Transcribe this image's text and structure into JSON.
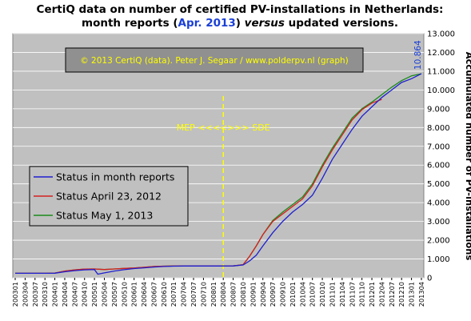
{
  "chart_data": {
    "type": "line",
    "title_parts": [
      {
        "text": "CertiQ data on number of certified PV-installations in Netherlands:",
        "color": "#000000",
        "italic": false
      },
      {
        "text": "month reports (",
        "color": "#000000",
        "italic": false
      },
      {
        "text": "Apr. 2013",
        "color": "#1a3fd6",
        "italic": false
      },
      {
        "text": ") ",
        "color": "#000000",
        "italic": false
      },
      {
        "text": "versus",
        "color": "#000000",
        "italic": true
      },
      {
        "text": " updated versions.",
        "color": "#000000",
        "italic": false
      }
    ],
    "ylabel": "Accumulated number of PV-installations",
    "ylim": [
      0,
      13000
    ],
    "y_ticks": [
      "0",
      "1.000",
      "2.000",
      "3.000",
      "4.000",
      "5.000",
      "6.000",
      "7.000",
      "8.000",
      "9.000",
      "10.000",
      "11.000",
      "12.000",
      "13.000"
    ],
    "x_ticks": [
      "200301",
      "200304",
      "200307",
      "200310",
      "200401",
      "200404",
      "200407",
      "200410",
      "200501",
      "200504",
      "200507",
      "200510",
      "200601",
      "200604",
      "200607",
      "200610",
      "200701",
      "200704",
      "200707",
      "200710",
      "200801",
      "200804",
      "200807",
      "200810",
      "200901",
      "200904",
      "200907",
      "200910",
      "201001",
      "201004",
      "201007",
      "201010",
      "201101",
      "201104",
      "201107",
      "201110",
      "201201",
      "201204",
      "201207",
      "201210",
      "201301",
      "201304"
    ],
    "grid": true,
    "copyright": "© 2013 CertiQ (data). Peter J. Segaar / www.polderpv.nl (graph)",
    "annotation": "MEP <<<<>>> SDE",
    "annotation_x": "200804",
    "end_label": "10.864",
    "legend_position": "lower-left",
    "series": [
      {
        "name": "Status in month reports",
        "color": "#1f1fcf",
        "points": [
          [
            "200301",
            240
          ],
          [
            "200310",
            240
          ],
          [
            "200401",
            245
          ],
          [
            "200404",
            320
          ],
          [
            "200407",
            380
          ],
          [
            "200410",
            420
          ],
          [
            "200501",
            440
          ],
          [
            "200502",
            190
          ],
          [
            "200504",
            260
          ],
          [
            "200507",
            360
          ],
          [
            "200510",
            430
          ],
          [
            "200601",
            490
          ],
          [
            "200604",
            530
          ],
          [
            "200607",
            570
          ],
          [
            "200610",
            600
          ],
          [
            "200701",
            620
          ],
          [
            "200704",
            625
          ],
          [
            "200707",
            625
          ],
          [
            "200710",
            625
          ],
          [
            "200801",
            625
          ],
          [
            "200804",
            625
          ],
          [
            "200807",
            630
          ],
          [
            "200810",
            680
          ],
          [
            "200812",
            900
          ],
          [
            "200902",
            1200
          ],
          [
            "200904",
            1700
          ],
          [
            "200907",
            2400
          ],
          [
            "200910",
            3000
          ],
          [
            "201001",
            3500
          ],
          [
            "201004",
            3900
          ],
          [
            "201007",
            4400
          ],
          [
            "201010",
            5300
          ],
          [
            "201101",
            6300
          ],
          [
            "201104",
            7100
          ],
          [
            "201107",
            7900
          ],
          [
            "201110",
            8600
          ],
          [
            "201201",
            9100
          ],
          [
            "201204",
            9600
          ],
          [
            "201207",
            10000
          ],
          [
            "201210",
            10400
          ],
          [
            "201301",
            10600
          ],
          [
            "201304",
            10864
          ]
        ]
      },
      {
        "name": "Status April 23, 2012",
        "color": "#d42020",
        "points": [
          [
            "200301",
            240
          ],
          [
            "200310",
            240
          ],
          [
            "200401",
            250
          ],
          [
            "200404",
            360
          ],
          [
            "200407",
            420
          ],
          [
            "200410",
            460
          ],
          [
            "200501",
            470
          ],
          [
            "200504",
            440
          ],
          [
            "200507",
            470
          ],
          [
            "200510",
            500
          ],
          [
            "200601",
            520
          ],
          [
            "200604",
            560
          ],
          [
            "200607",
            600
          ],
          [
            "200610",
            620
          ],
          [
            "200701",
            625
          ],
          [
            "200704",
            625
          ],
          [
            "200707",
            625
          ],
          [
            "200710",
            625
          ],
          [
            "200801",
            625
          ],
          [
            "200804",
            625
          ],
          [
            "200807",
            630
          ],
          [
            "200810",
            700
          ],
          [
            "200812",
            1150
          ],
          [
            "200902",
            1700
          ],
          [
            "200904",
            2300
          ],
          [
            "200907",
            3000
          ],
          [
            "200910",
            3400
          ],
          [
            "201001",
            3800
          ],
          [
            "201004",
            4200
          ],
          [
            "201007",
            4900
          ],
          [
            "201010",
            5900
          ],
          [
            "201101",
            6800
          ],
          [
            "201104",
            7600
          ],
          [
            "201107",
            8400
          ],
          [
            "201110",
            8950
          ],
          [
            "201201",
            9300
          ],
          [
            "201204",
            9500
          ]
        ]
      },
      {
        "name": "Status May 1, 2013",
        "color": "#1a8a1a",
        "points": [
          [
            "200301",
            240
          ],
          [
            "200310",
            240
          ],
          [
            "200401",
            250
          ],
          [
            "200404",
            360
          ],
          [
            "200407",
            420
          ],
          [
            "200410",
            460
          ],
          [
            "200501",
            470
          ],
          [
            "200504",
            440
          ],
          [
            "200507",
            470
          ],
          [
            "200510",
            500
          ],
          [
            "200601",
            520
          ],
          [
            "200604",
            560
          ],
          [
            "200607",
            600
          ],
          [
            "200610",
            620
          ],
          [
            "200701",
            625
          ],
          [
            "200704",
            625
          ],
          [
            "200707",
            625
          ],
          [
            "200710",
            625
          ],
          [
            "200801",
            625
          ],
          [
            "200804",
            625
          ],
          [
            "200807",
            630
          ],
          [
            "200810",
            700
          ],
          [
            "200812",
            1150
          ],
          [
            "200902",
            1700
          ],
          [
            "200904",
            2300
          ],
          [
            "200907",
            3050
          ],
          [
            "200910",
            3500
          ],
          [
            "201001",
            3900
          ],
          [
            "201004",
            4300
          ],
          [
            "201007",
            5000
          ],
          [
            "201010",
            6000
          ],
          [
            "201101",
            6900
          ],
          [
            "201104",
            7700
          ],
          [
            "201107",
            8500
          ],
          [
            "201110",
            9000
          ],
          [
            "201201",
            9350
          ],
          [
            "201204",
            9750
          ],
          [
            "201207",
            10150
          ],
          [
            "201210",
            10500
          ],
          [
            "201301",
            10750
          ],
          [
            "201304",
            10864
          ]
        ]
      }
    ]
  }
}
